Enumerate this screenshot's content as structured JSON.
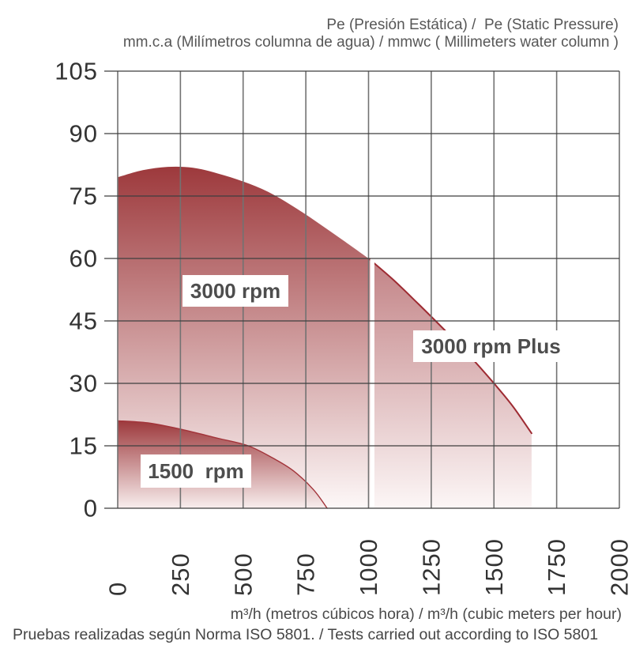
{
  "header": {
    "title_line1": "Pe (Presión Estática) /  Pe (Static Pressure)",
    "title_line2": "mm.c.a (Milímetros columna de agua) / mmwc ( Millimeters water column )"
  },
  "curve_labels": {
    "rpm3000": "3000 rpm",
    "rpm3000_plus": "3000 rpm Plus",
    "rpm1500": "1500  rpm"
  },
  "footer": {
    "x_axis_title": "m³/h (metros cúbicos hora) / m³/h (cubic meters per hour)",
    "note": "Pruebas realizadas según Norma ISO 5801. / Tests carried out according to ISO 5801"
  },
  "colors": {
    "dark_red": "#9d393c",
    "plus_light_red": "#c28285",
    "curve_stroke_red": "#9e2b32",
    "h_gridline": "#3f3f3f",
    "v_gridline": "#727272",
    "tick_text": "#333333",
    "separator": "#ffffff"
  },
  "chart_data": {
    "type": "area",
    "title": "Pe (Presión Estática) /  Pe (Static Pressure)",
    "subtitle": "mm.c.a (Milímetros columna de agua) / mmwc ( Millimeters water column )",
    "xlabel": "m³/h (metros cúbicos hora) / m³/h (cubic meters per hour)",
    "footnote": "Pruebas realizadas según Norma ISO 5801. / Tests carried out according to ISO 5801",
    "xlim": [
      0,
      2000
    ],
    "ylim": [
      0,
      105
    ],
    "x_ticks": [
      0,
      250,
      500,
      750,
      1000,
      1250,
      1500,
      1750,
      2000
    ],
    "y_ticks": [
      0,
      15,
      30,
      45,
      60,
      75,
      90,
      105
    ],
    "grid": true,
    "legend_position": "inline-labels",
    "series": [
      {
        "name": "3000 rpm",
        "points": [
          [
            0,
            79.5
          ],
          [
            100,
            81.2
          ],
          [
            200,
            82
          ],
          [
            300,
            81.8
          ],
          [
            400,
            80.4
          ],
          [
            500,
            78.5
          ],
          [
            600,
            76
          ],
          [
            700,
            72.5
          ],
          [
            800,
            68.5
          ],
          [
            900,
            64.3
          ],
          [
            1000,
            60
          ]
        ],
        "fill_top": "#9d393c",
        "fill_bottom": "#fdf8f8",
        "stroke": null,
        "stroke_width": 0
      },
      {
        "name": "3000 rpm Plus",
        "points": [
          [
            1000,
            60
          ],
          [
            1100,
            54.8
          ],
          [
            1200,
            49
          ],
          [
            1300,
            43
          ],
          [
            1400,
            36.8
          ],
          [
            1500,
            30
          ],
          [
            1575,
            24.5
          ],
          [
            1650,
            18
          ]
        ],
        "fill_top": "#c28285",
        "fill_bottom": "#fcf6f6",
        "stroke": "#9e2b32",
        "stroke_width": 2
      },
      {
        "name": "1500 rpm",
        "points": [
          [
            0,
            21
          ],
          [
            120,
            20.5
          ],
          [
            250,
            19
          ],
          [
            400,
            16.8
          ],
          [
            520,
            15
          ],
          [
            620,
            12
          ],
          [
            700,
            9
          ],
          [
            780,
            4.5
          ],
          [
            835,
            0
          ]
        ],
        "fill_top": "#9d393c",
        "fill_bottom": "#f8eeee",
        "stroke": "#a2343a",
        "stroke_width": 1.4
      }
    ],
    "separator": {
      "x": 1000,
      "y_top": 60,
      "y_bottom": 0,
      "color": "#ffffff",
      "width": 5.5
    }
  }
}
